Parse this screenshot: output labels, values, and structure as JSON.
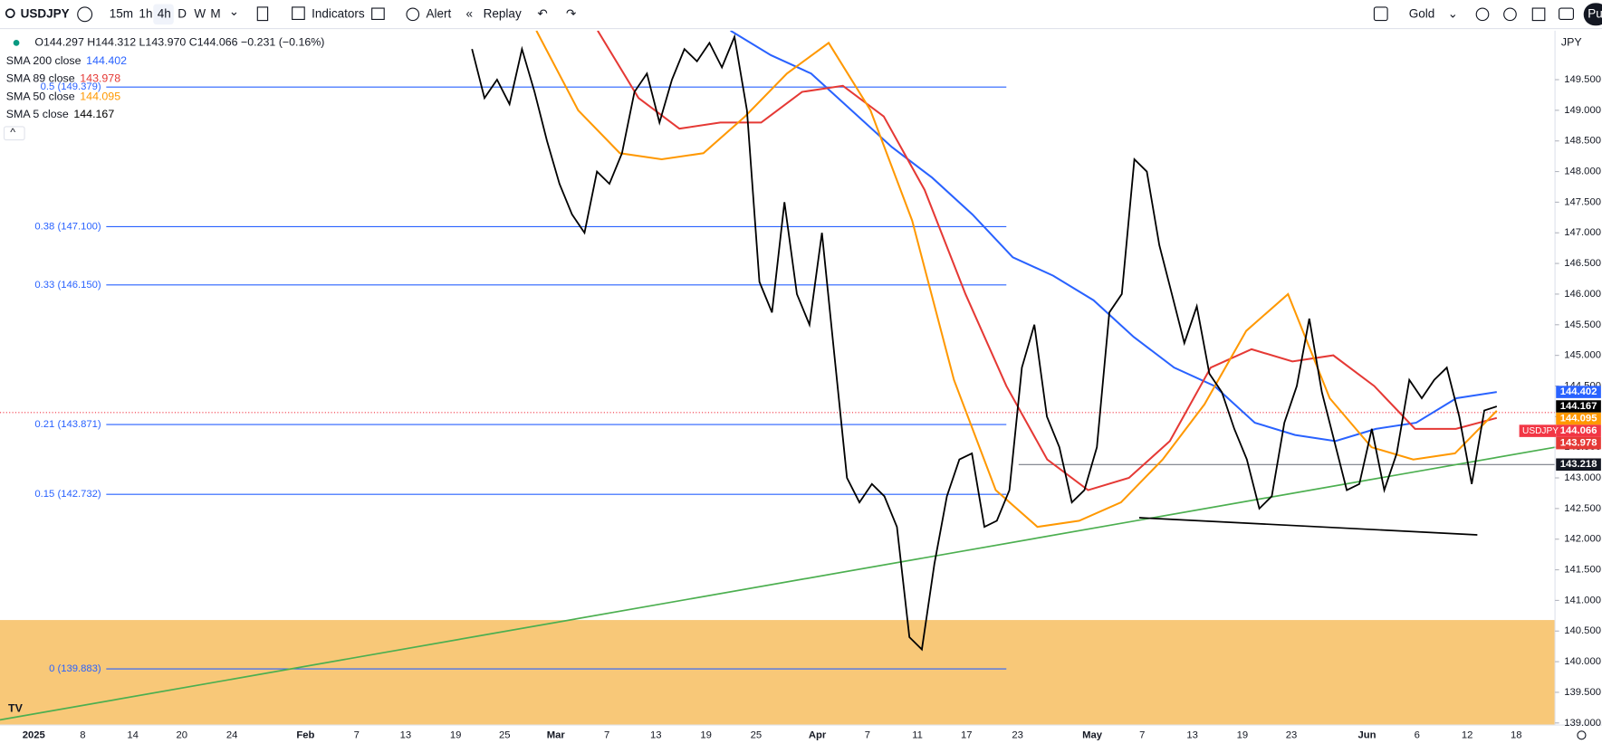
{
  "toolbar": {
    "symbol": "USDJPY",
    "intervals": [
      "15m",
      "1h",
      "4h",
      "D",
      "W",
      "M"
    ],
    "active_interval": 2,
    "indicators": "Indicators",
    "alert": "Alert",
    "replay": "Replay",
    "theme": "Gold",
    "account": "Pu"
  },
  "legend": {
    "ohlc": "O144.297 H144.312 L143.970 C144.066 −0.231 (−0.16%)"
  },
  "chart_data": {
    "type": "line",
    "currency": "JPY",
    "symbol_tag": "USDJPY",
    "ylim": [
      138.967,
      150.3
    ],
    "yticks": [
      {
        "value": 139,
        "label": "139.000"
      },
      {
        "value": 139.5,
        "label": "139.500"
      },
      {
        "value": 140,
        "label": "140.000"
      },
      {
        "value": 140.5,
        "label": "140.500"
      },
      {
        "value": 141,
        "label": "141.000"
      },
      {
        "value": 141.5,
        "label": "141.500"
      },
      {
        "value": 142,
        "label": "142.000"
      },
      {
        "value": 142.5,
        "label": "142.500"
      },
      {
        "value": 143,
        "label": "143.000"
      },
      {
        "value": 143.5,
        "label": "143.500"
      },
      {
        "value": 144,
        "label": "144.000"
      },
      {
        "value": 144.5,
        "label": "144.500"
      },
      {
        "value": 145,
        "label": "145.000"
      },
      {
        "value": 145.5,
        "label": "145.500"
      },
      {
        "value": 146,
        "label": "146.000"
      },
      {
        "value": 146.5,
        "label": "146.500"
      },
      {
        "value": 147,
        "label": "147.000"
      },
      {
        "value": 147.5,
        "label": "147.500"
      },
      {
        "value": 148,
        "label": "148.000"
      },
      {
        "value": 148.5,
        "label": "148.500"
      },
      {
        "value": 149,
        "label": "149.000"
      },
      {
        "value": 149.5,
        "label": "149.500"
      }
    ],
    "x_labels": [
      "2025",
      "8",
      "14",
      "20",
      "24",
      "Feb",
      "7",
      "13",
      "19",
      "25",
      "Mar",
      "7",
      "13",
      "19",
      "25",
      "Apr",
      "7",
      "11",
      "17",
      "23",
      "May",
      "7",
      "13",
      "19",
      "23",
      "Jun",
      "6",
      "12",
      "18"
    ],
    "close": 144.066,
    "series": [
      {
        "name": "SMA 200 close",
        "color": "#2962ff",
        "last": 144.402,
        "values": [
          150.3,
          149.9,
          149.6,
          149.0,
          148.4,
          147.9,
          147.3,
          146.6,
          146.3,
          145.9,
          145.3,
          144.8,
          144.5,
          143.9,
          143.7,
          143.6,
          143.8,
          143.9,
          144.3,
          144.402
        ]
      },
      {
        "name": "SMA 89 close",
        "color": "#e53935",
        "last": 143.978,
        "values": [
          150.3,
          149.2,
          148.7,
          148.8,
          148.8,
          149.3,
          149.4,
          148.9,
          147.7,
          146.0,
          144.5,
          143.3,
          142.8,
          143.0,
          143.6,
          144.8,
          145.1,
          144.9,
          145.0,
          144.5,
          143.8,
          143.8,
          143.978
        ]
      },
      {
        "name": "SMA 50 close",
        "color": "#ff9800",
        "last": 144.095,
        "values": [
          150.3,
          149.0,
          148.3,
          148.2,
          148.3,
          148.9,
          149.6,
          150.1,
          149.0,
          147.2,
          144.6,
          142.8,
          142.2,
          142.3,
          142.6,
          143.3,
          144.2,
          145.4,
          146.0,
          144.3,
          143.5,
          143.3,
          143.4,
          144.095
        ]
      },
      {
        "name": "SMA 5 close",
        "color": "#000000",
        "last": 144.167,
        "values": [
          150.0,
          149.2,
          149.5,
          149.1,
          150.0,
          149.3,
          148.5,
          147.8,
          147.3,
          147.0,
          148.0,
          147.8,
          148.3,
          149.3,
          149.6,
          148.8,
          149.5,
          150.0,
          149.8,
          150.1,
          149.7,
          150.2,
          149.0,
          146.2,
          145.7,
          147.5,
          146.0,
          145.5,
          147.0,
          145.0,
          143.0,
          142.6,
          142.9,
          142.7,
          142.2,
          140.4,
          140.2,
          141.6,
          142.7,
          143.3,
          143.4,
          142.2,
          142.3,
          142.8,
          144.8,
          145.5,
          144.0,
          143.5,
          142.6,
          142.8,
          143.5,
          145.7,
          146.0,
          148.2,
          148.0,
          146.8,
          146.0,
          145.2,
          145.8,
          144.7,
          144.4,
          143.8,
          143.3,
          142.5,
          142.7,
          143.9,
          144.5,
          145.6,
          144.4,
          143.6,
          142.8,
          142.9,
          143.8,
          142.8,
          143.4,
          144.6,
          144.3,
          144.6,
          144.8,
          144.0,
          142.9,
          144.1,
          144.167
        ]
      }
    ],
    "fib_levels": [
      {
        "label": "0.5 (149.379)",
        "value": 149.379
      },
      {
        "label": "0.38 (147.100)",
        "value": 147.1
      },
      {
        "label": "0.33 (146.150)",
        "value": 146.15
      },
      {
        "label": "0.21 (143.871)",
        "value": 143.871
      },
      {
        "label": "0.15 (142.732)",
        "value": 142.732
      },
      {
        "label": "0 (139.883)",
        "value": 139.883
      }
    ],
    "fib_color": "#2962ff",
    "horizontal_level": 143.218,
    "trendlines": [
      {
        "color": "#4caf50",
        "values": [
          139.05,
          143.5
        ]
      },
      {
        "color": "#000000",
        "values": [
          142.35,
          142.07
        ]
      }
    ],
    "zone": {
      "color": "#f8c878",
      "top": 140.68
    }
  }
}
